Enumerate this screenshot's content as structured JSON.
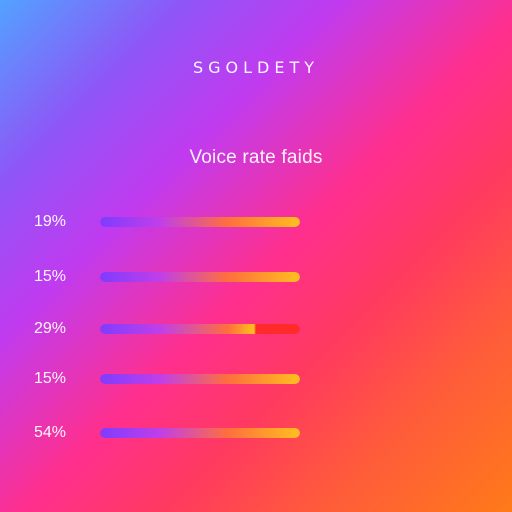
{
  "header": {
    "brand": "SGOLDETY",
    "subtitle": "Voice rate faids"
  },
  "stats": [
    {
      "label": "19%",
      "progress": 1.0,
      "color_scheme": "gold"
    },
    {
      "label": "15%",
      "progress": 1.0,
      "color_scheme": "gold"
    },
    {
      "label": "29%",
      "progress": 1.0,
      "color_scheme": "red-end"
    },
    {
      "label": "15%",
      "progress": 1.0,
      "color_scheme": "gold"
    },
    {
      "label": "54%",
      "progress": 1.0,
      "color_scheme": "gold"
    }
  ],
  "colors": {
    "accent_start": "#7f3cff",
    "accent_mid": "#ff6f3d",
    "accent_end": "#ffbf1f",
    "warning_end": "#ff2a2a"
  }
}
